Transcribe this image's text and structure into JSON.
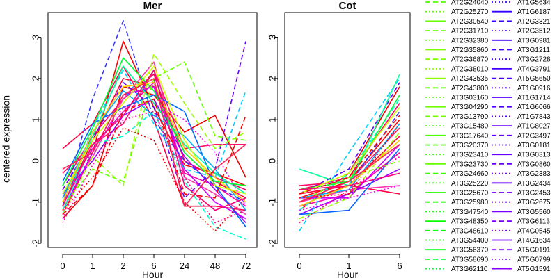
{
  "chart_data": [
    {
      "type": "line",
      "title": "Mer",
      "xlabel": "Hour",
      "ylabel": "centered expression",
      "categories": [
        "0",
        "1",
        "2",
        "6",
        "24",
        "48",
        "72"
      ],
      "yticks": [
        "-2",
        "-1",
        "0",
        "1",
        "2",
        "3"
      ],
      "ylim": [
        -2.1,
        3.6
      ],
      "series": [
        {
          "color": "#ff0000",
          "dash": "solid",
          "values": [
            -1.3,
            0.2,
            2.9,
            1.3,
            -0.1,
            -0.3,
            -0.6
          ]
        },
        {
          "color": "#ff0033",
          "dash": "solid",
          "values": [
            -1.1,
            0.5,
            2.0,
            1.8,
            0.2,
            -0.5,
            -0.9
          ]
        },
        {
          "color": "#ff0066",
          "dash": "solid",
          "values": [
            -0.6,
            0.6,
            1.5,
            2.1,
            0.0,
            -0.4,
            -0.7
          ]
        },
        {
          "color": "#ff00aa",
          "dash": "solid",
          "values": [
            -0.9,
            0.3,
            1.2,
            1.9,
            -0.3,
            -0.6,
            -1.1
          ]
        },
        {
          "color": "#ff0044",
          "dash": "solid",
          "values": [
            0.3,
            0.9,
            2.3,
            1.0,
            -1.1,
            -1.1,
            -1.2
          ]
        },
        {
          "color": "#ee0000",
          "dash": "solid",
          "values": [
            -1.4,
            -0.6,
            1.8,
            1.6,
            0.7,
            1.1,
            -0.4
          ]
        },
        {
          "color": "#ff1166",
          "dash": "solid",
          "values": [
            -0.3,
            0.4,
            0.9,
            2.2,
            0.3,
            0.4,
            0.4
          ]
        },
        {
          "color": "#ff33aa",
          "dash": "solid",
          "values": [
            -1.0,
            0.1,
            1.5,
            2.4,
            -0.4,
            -0.8,
            -1.3
          ]
        },
        {
          "color": "#cc00ff",
          "dash": "solid",
          "values": [
            -1.2,
            0.2,
            1.6,
            1.8,
            -0.2,
            -1.0,
            -1.4
          ]
        },
        {
          "color": "#9900ff",
          "dash": "solid",
          "values": [
            -0.8,
            0.0,
            1.1,
            1.5,
            0.1,
            -0.7,
            -1.5
          ]
        },
        {
          "color": "#6600ff",
          "dash": "dashed",
          "values": [
            -0.7,
            0.5,
            1.9,
            1.3,
            -0.9,
            -0.2,
            2.9
          ]
        },
        {
          "color": "#3333ff",
          "dash": "dashed",
          "values": [
            -1.1,
            1.5,
            3.4,
            1.0,
            0.0,
            -0.6,
            -1.0
          ]
        },
        {
          "color": "#00ccff",
          "dash": "dashed",
          "values": [
            -1.3,
            0.8,
            2.2,
            0.9,
            -0.2,
            -0.4,
            1.7
          ]
        },
        {
          "color": "#00ffcc",
          "dash": "dashed",
          "values": [
            -1.2,
            0.4,
            0.6,
            1.2,
            -0.5,
            -1.6,
            -1.9
          ]
        },
        {
          "color": "#0066ff",
          "dash": "solid",
          "values": [
            -0.5,
            0.9,
            1.3,
            1.6,
            1.2,
            -0.6,
            -1.6
          ]
        },
        {
          "color": "#00aaff",
          "dash": "solid",
          "values": [
            -0.9,
            0.7,
            1.7,
            1.1,
            0.6,
            -0.2,
            -1.2
          ]
        },
        {
          "color": "#00ff99",
          "dash": "solid",
          "values": [
            -1.0,
            0.6,
            2.3,
            1.4,
            0.4,
            -0.3,
            -0.8
          ]
        },
        {
          "color": "#00ff33",
          "dash": "solid",
          "values": [
            -0.6,
            0.8,
            2.5,
            1.7,
            0.2,
            -0.5,
            -0.6
          ]
        },
        {
          "color": "#66ff00",
          "dash": "dashed",
          "values": [
            -1.1,
            -0.2,
            -0.5,
            2.0,
            2.4,
            0.6,
            0.5
          ]
        },
        {
          "color": "#99ff00",
          "dash": "dashed",
          "values": [
            -1.3,
            0.1,
            -0.6,
            2.6,
            1.4,
            0.3,
            0.7
          ]
        },
        {
          "color": "#ccff00",
          "dash": "solid",
          "values": [
            -0.8,
            0.5,
            1.4,
            2.3,
            0.5,
            -0.6,
            -0.8
          ]
        },
        {
          "color": "#ffcc00",
          "dash": "solid",
          "values": [
            -1.0,
            0.7,
            1.8,
            1.9,
            0.3,
            -0.4,
            -1.0
          ]
        },
        {
          "color": "#ff00ff",
          "dash": "dotted",
          "values": [
            -1.4,
            0.3,
            1.3,
            1.4,
            1.0,
            0.2,
            -1.1
          ]
        },
        {
          "color": "#ff0099",
          "dash": "dotted",
          "values": [
            -1.5,
            -0.1,
            1.0,
            1.2,
            -0.4,
            -1.5,
            -1.2
          ]
        },
        {
          "color": "#ff0000",
          "dash": "dotted",
          "values": [
            -1.2,
            -0.4,
            0.8,
            0.5,
            -1.0,
            -1.7,
            -0.9
          ]
        },
        {
          "color": "#ff0000",
          "dash": "dashed",
          "values": [
            -1.3,
            -0.6,
            1.2,
            1.5,
            -0.8,
            -0.9,
            1.1
          ]
        },
        {
          "color": "#ff2255",
          "dash": "solid",
          "values": [
            -0.2,
            0.2,
            1.6,
            2.0,
            -1.1,
            -0.2,
            0.4
          ]
        },
        {
          "color": "#ff0077",
          "dash": "solid",
          "values": [
            -1.1,
            0.4,
            1.1,
            2.2,
            -0.6,
            -1.2,
            -0.9
          ]
        }
      ]
    },
    {
      "type": "line",
      "title": "Cot",
      "xlabel": "Hour",
      "ylabel": "",
      "categories": [
        "0",
        "1",
        "6"
      ],
      "yticks": [
        "-2",
        "-1",
        "0",
        "1",
        "2",
        "3"
      ],
      "ylim": [
        -2.1,
        3.6
      ],
      "series": [
        {
          "color": "#ff0000",
          "dash": "solid",
          "values": [
            -0.9,
            -0.5,
            1.0
          ]
        },
        {
          "color": "#ff0033",
          "dash": "solid",
          "values": [
            -1.0,
            -0.6,
            0.6
          ]
        },
        {
          "color": "#ff0066",
          "dash": "solid",
          "values": [
            -0.7,
            -0.4,
            1.4
          ]
        },
        {
          "color": "#ff00aa",
          "dash": "solid",
          "values": [
            -1.1,
            -0.8,
            0.2
          ]
        },
        {
          "color": "#ff0044",
          "dash": "solid",
          "values": [
            -0.8,
            -0.6,
            -0.8
          ]
        },
        {
          "color": "#ee0000",
          "dash": "solid",
          "values": [
            -1.2,
            -0.3,
            1.8
          ]
        },
        {
          "color": "#ff1166",
          "dash": "solid",
          "values": [
            -0.6,
            -0.5,
            0.8
          ]
        },
        {
          "color": "#ff33aa",
          "dash": "solid",
          "values": [
            -1.0,
            -0.7,
            -0.6
          ]
        },
        {
          "color": "#cc00ff",
          "dash": "solid",
          "values": [
            -0.9,
            -0.9,
            0.4
          ]
        },
        {
          "color": "#9900ff",
          "dash": "solid",
          "values": [
            -1.3,
            -0.8,
            -0.2
          ]
        },
        {
          "color": "#6600ff",
          "dash": "dashed",
          "values": [
            -0.8,
            -0.2,
            1.9
          ]
        },
        {
          "color": "#3333ff",
          "dash": "dashed",
          "values": [
            -1.1,
            -0.6,
            1.2
          ]
        },
        {
          "color": "#00ccff",
          "dash": "dashed",
          "values": [
            -1.7,
            0.2,
            2.0
          ]
        },
        {
          "color": "#00ffcc",
          "dash": "dashed",
          "values": [
            -1.2,
            -0.3,
            1.5
          ]
        },
        {
          "color": "#0066ff",
          "dash": "solid",
          "values": [
            -1.3,
            -1.2,
            0.3
          ]
        },
        {
          "color": "#00aaff",
          "dash": "solid",
          "values": [
            -0.9,
            -0.7,
            0.9
          ]
        },
        {
          "color": "#00ff99",
          "dash": "solid",
          "values": [
            -0.2,
            -0.6,
            2.1
          ]
        },
        {
          "color": "#00ff33",
          "dash": "solid",
          "values": [
            -0.7,
            -0.5,
            1.6
          ]
        },
        {
          "color": "#66ff00",
          "dash": "dashed",
          "values": [
            -1.0,
            -0.4,
            0.0
          ]
        },
        {
          "color": "#99ff00",
          "dash": "dashed",
          "values": [
            -1.4,
            -0.9,
            0.7
          ]
        },
        {
          "color": "#ccff00",
          "dash": "solid",
          "values": [
            -0.8,
            -0.3,
            1.3
          ]
        },
        {
          "color": "#ffcc00",
          "dash": "solid",
          "values": [
            -1.1,
            -0.6,
            0.5
          ]
        },
        {
          "color": "#ff00ff",
          "dash": "dotted",
          "values": [
            -1.2,
            -0.9,
            -0.6
          ]
        },
        {
          "color": "#ff0099",
          "dash": "dotted",
          "values": [
            -1.5,
            -0.7,
            0.1
          ]
        },
        {
          "color": "#ff0000",
          "dash": "dotted",
          "values": [
            -0.9,
            -0.8,
            0.9
          ]
        },
        {
          "color": "#ff0000",
          "dash": "dashed",
          "values": [
            -0.8,
            -0.4,
            1.1
          ]
        },
        {
          "color": "#ff2255",
          "dash": "solid",
          "values": [
            -1.0,
            -0.5,
            0.4
          ]
        },
        {
          "color": "#ff0077",
          "dash": "solid",
          "values": [
            -0.7,
            -0.6,
            -0.3
          ]
        }
      ]
    }
  ],
  "legend": {
    "columns": [
      [
        {
          "label": "AT2G24040",
          "color": "#55ff00",
          "dash": "dashed"
        },
        {
          "label": "AT2G25270",
          "color": "#60ff00",
          "dash": "dotted"
        },
        {
          "label": "AT2G30540",
          "color": "#66ff00",
          "dash": "solid"
        },
        {
          "label": "AT2G31710",
          "color": "#6cff00",
          "dash": "dashed"
        },
        {
          "label": "AT2G32380",
          "color": "#72ff00",
          "dash": "dotted"
        },
        {
          "label": "AT2G35860",
          "color": "#78ff00",
          "dash": "solid"
        },
        {
          "label": "AT2G36870",
          "color": "#80ff00",
          "dash": "dashed"
        },
        {
          "label": "AT2G38010",
          "color": "#88ff00",
          "dash": "dotted"
        },
        {
          "label": "AT2G43535",
          "color": "#8eff00",
          "dash": "solid"
        },
        {
          "label": "AT2G43800",
          "color": "#66ff00",
          "dash": "dashed"
        },
        {
          "label": "AT3G03160",
          "color": "#66ff00",
          "dash": "dotted"
        },
        {
          "label": "AT3G04290",
          "color": "#70ff00",
          "dash": "solid"
        },
        {
          "label": "AT3G13790",
          "color": "#70ff00",
          "dash": "dashed"
        },
        {
          "label": "AT3G15480",
          "color": "#5cff00",
          "dash": "dotted"
        },
        {
          "label": "AT3G17640",
          "color": "#50ff00",
          "dash": "solid"
        },
        {
          "label": "AT3G20370",
          "color": "#48ff00",
          "dash": "dashed"
        },
        {
          "label": "AT3G23410",
          "color": "#40ff00",
          "dash": "dotted"
        },
        {
          "label": "AT3G23730",
          "color": "#66ff00",
          "dash": "solid"
        },
        {
          "label": "AT3G24660",
          "color": "#38ff00",
          "dash": "dashed"
        },
        {
          "label": "AT3G25220",
          "color": "#30ff00",
          "dash": "dotted"
        },
        {
          "label": "AT3G25670",
          "color": "#28ff00",
          "dash": "solid"
        },
        {
          "label": "AT3G25980",
          "color": "#20ff00",
          "dash": "dashed"
        },
        {
          "label": "AT3G47540",
          "color": "#18ff00",
          "dash": "dotted"
        },
        {
          "label": "AT3G48350",
          "color": "#10ff00",
          "dash": "solid"
        },
        {
          "label": "AT3G48610",
          "color": "#08ff00",
          "dash": "dashed"
        },
        {
          "label": "AT3G54400",
          "color": "#00ff00",
          "dash": "dotted"
        },
        {
          "label": "AT3G56370",
          "color": "#00ff10",
          "dash": "solid"
        },
        {
          "label": "AT3G58690",
          "color": "#00ff20",
          "dash": "dashed"
        },
        {
          "label": "AT3G62110",
          "color": "#00ff30",
          "dash": "dotted"
        }
      ],
      [
        {
          "label": "AT1G5634",
          "color": "#3300ff",
          "dash": "dotted"
        },
        {
          "label": "AT1G6187",
          "color": "#3500ff",
          "dash": "solid"
        },
        {
          "label": "AT2G3321",
          "color": "#3800ff",
          "dash": "dashed"
        },
        {
          "label": "AT2G3512",
          "color": "#3b00ff",
          "dash": "dotted"
        },
        {
          "label": "AT3G0981",
          "color": "#3e00ff",
          "dash": "solid"
        },
        {
          "label": "AT3G1211",
          "color": "#4100ff",
          "dash": "dashed"
        },
        {
          "label": "AT3G2728",
          "color": "#4400ff",
          "dash": "dotted"
        },
        {
          "label": "AT4G3791",
          "color": "#4700ff",
          "dash": "solid"
        },
        {
          "label": "AT5G5650",
          "color": "#4a00ff",
          "dash": "dashed"
        },
        {
          "label": "AT1G0916",
          "color": "#4d00ff",
          "dash": "dotted"
        },
        {
          "label": "AT1G1714",
          "color": "#5000ff",
          "dash": "solid"
        },
        {
          "label": "AT1G6066",
          "color": "#5300ff",
          "dash": "dashed"
        },
        {
          "label": "AT1G7843",
          "color": "#5600ff",
          "dash": "dotted"
        },
        {
          "label": "AT1G8027",
          "color": "#5900ff",
          "dash": "solid"
        },
        {
          "label": "AT2G3497",
          "color": "#5c00ff",
          "dash": "dashed"
        },
        {
          "label": "AT3G0181",
          "color": "#5f00ff",
          "dash": "dotted"
        },
        {
          "label": "AT3G0313",
          "color": "#6200ff",
          "dash": "solid"
        },
        {
          "label": "AT3G0860",
          "color": "#6500ff",
          "dash": "dashed"
        },
        {
          "label": "AT3G2383",
          "color": "#6800ff",
          "dash": "dotted"
        },
        {
          "label": "AT3G2434",
          "color": "#6b00ff",
          "dash": "solid"
        },
        {
          "label": "AT3G2453",
          "color": "#6e00ff",
          "dash": "dashed"
        },
        {
          "label": "AT3G2675",
          "color": "#7100ff",
          "dash": "dotted"
        },
        {
          "label": "AT3G5560",
          "color": "#7400ff",
          "dash": "solid"
        },
        {
          "label": "AT3G6113",
          "color": "#7700ff",
          "dash": "dashed"
        },
        {
          "label": "AT4G0545",
          "color": "#7a00ff",
          "dash": "dotted"
        },
        {
          "label": "AT4G1634",
          "color": "#7d00ff",
          "dash": "solid"
        },
        {
          "label": "AT5G0191",
          "color": "#8000ff",
          "dash": "dashed"
        },
        {
          "label": "AT5G0799",
          "color": "#8300ff",
          "dash": "dotted"
        },
        {
          "label": "AT5G1591",
          "color": "#8600ff",
          "dash": "solid"
        }
      ]
    ]
  }
}
